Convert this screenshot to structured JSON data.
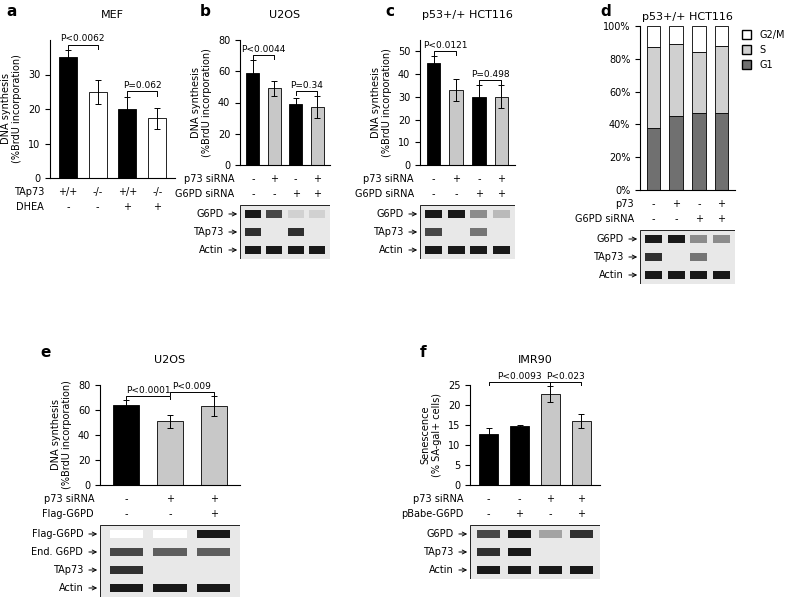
{
  "chart_data": [
    {
      "panel": "a",
      "type": "bar",
      "title": "MEF",
      "y_label": "DNA synthesis\n(%BrdU incorporation)",
      "categories": [
        null,
        null,
        null,
        null
      ],
      "values": [
        35,
        25,
        20,
        17.3
      ],
      "errors": [
        2,
        3.5,
        3.5,
        3
      ],
      "colors": [
        "#000000",
        "#ffffff",
        "#000000",
        "#ffffff"
      ],
      "ylim": [
        0,
        40
      ],
      "yticks": [
        0,
        10,
        20,
        30
      ],
      "tick_labels": "y",
      "annotations": [
        {
          "text": "P<0.0062",
          "bars": [
            0,
            1
          ]
        },
        {
          "text": "P=0.062",
          "bars": [
            2,
            3
          ]
        }
      ],
      "rows": [
        {
          "label": "TAp73",
          "values": [
            "+/+",
            "-/-",
            "+/+",
            "-/-"
          ]
        },
        {
          "label": "DHEA",
          "values": [
            "-",
            "-",
            "+",
            "+"
          ]
        }
      ]
    },
    {
      "panel": "b",
      "type": "bar",
      "title": "U2OS",
      "y_label": "DNA synthesis\n(%BrdU incorporation)",
      "categories": [
        null,
        null,
        null,
        null
      ],
      "values": [
        59,
        49,
        39,
        37
      ],
      "errors": [
        8,
        5,
        4,
        7
      ],
      "colors": [
        "#000000",
        "#c8c8c8",
        "#000000",
        "#c8c8c8"
      ],
      "ylim": [
        0,
        80
      ],
      "yticks": [
        0,
        20,
        40,
        60,
        80
      ],
      "tick_labels": "y",
      "annotations": [
        {
          "text": "P<0.0044",
          "bars": [
            0,
            1
          ]
        },
        {
          "text": "P=0.34",
          "bars": [
            2,
            3
          ]
        }
      ],
      "rows": [
        {
          "label": "p73 siRNA",
          "values": [
            "-",
            "+",
            "-",
            "+"
          ]
        },
        {
          "label": "G6PD siRNA",
          "values": [
            "-",
            "-",
            "+",
            "+"
          ]
        }
      ],
      "blots": [
        {
          "label": "G6PD",
          "intensity": [
            1,
            0.8,
            0.2,
            0.2
          ]
        },
        {
          "label": "TAp73",
          "intensity": [
            0.9,
            0.1,
            0.9,
            0.1
          ]
        },
        {
          "label": "Actin",
          "intensity": [
            1,
            1,
            1,
            1
          ]
        }
      ]
    },
    {
      "panel": "c",
      "type": "bar",
      "title": "p53+/+ HCT116",
      "y_label": "DNA synthesis\n(%BrdU incorporation)",
      "categories": [
        null,
        null,
        null,
        null
      ],
      "values": [
        45,
        33,
        30,
        30
      ],
      "errors": [
        3,
        5,
        5,
        5
      ],
      "colors": [
        "#000000",
        "#c8c8c8",
        "#000000",
        "#c8c8c8"
      ],
      "ylim": [
        0,
        55
      ],
      "yticks": [
        0,
        10,
        20,
        30,
        40,
        50
      ],
      "tick_labels": "y",
      "annotations": [
        {
          "text": "P<0.0121",
          "bars": [
            0,
            1
          ]
        },
        {
          "text": "P=0.498",
          "bars": [
            2,
            3
          ]
        }
      ],
      "rows": [
        {
          "label": "p73 siRNA",
          "values": [
            "-",
            "+",
            "-",
            "+"
          ]
        },
        {
          "label": "G6PD siRNA",
          "values": [
            "-",
            "-",
            "+",
            "+"
          ]
        }
      ],
      "blots": [
        {
          "label": "G6PD",
          "intensity": [
            1,
            1,
            0.5,
            0.3
          ]
        },
        {
          "label": "TAp73",
          "intensity": [
            0.8,
            0.1,
            0.6,
            0.1
          ]
        },
        {
          "label": "Actin",
          "intensity": [
            1,
            1,
            1,
            1
          ]
        }
      ]
    },
    {
      "panel": "d",
      "type": "bar",
      "stacked": true,
      "title": "p53+/+ HCT116",
      "categories": [
        null,
        null,
        null,
        null
      ],
      "series": [
        {
          "name": "G1",
          "color": "#707070",
          "values": [
            38,
            45,
            47,
            47
          ]
        },
        {
          "name": "S",
          "color": "#d0d0d0",
          "values": [
            49,
            44,
            37,
            41
          ]
        },
        {
          "name": "G2/M",
          "color": "#ffffff",
          "values": [
            13,
            11,
            16,
            12
          ]
        }
      ],
      "ylim": [
        0,
        100
      ],
      "yticks": [
        {
          "value": 0,
          "label": "0%"
        },
        {
          "value": 20,
          "label": "20%"
        },
        {
          "value": 40,
          "label": "40%"
        },
        {
          "value": 60,
          "label": "60%"
        },
        {
          "value": 80,
          "label": "80%"
        },
        {
          "value": 100,
          "label": "100%"
        }
      ],
      "tick_labels": "y",
      "legend": "upper left",
      "rows": [
        {
          "label": "p73",
          "values": [
            "-",
            "+",
            "-",
            "+"
          ]
        },
        {
          "label": "G6PD siRNA",
          "values": [
            "-",
            "-",
            "+",
            "+"
          ]
        }
      ],
      "blots": [
        {
          "label": "G6PD",
          "intensity": [
            1,
            1,
            0.5,
            0.5
          ]
        },
        {
          "label": "TAp73",
          "intensity": [
            0.9,
            0.1,
            0.6,
            0.1
          ]
        },
        {
          "label": "Actin",
          "intensity": [
            1,
            1,
            1,
            1
          ]
        }
      ]
    },
    {
      "panel": "e",
      "type": "bar",
      "title": "U2OS",
      "y_label": "DNA synthesis\n(%BrdU incorporation)",
      "categories": [
        null,
        null,
        null
      ],
      "values": [
        64,
        51,
        63
      ],
      "errors": [
        4,
        5,
        8
      ],
      "colors": [
        "#000000",
        "#c8c8c8",
        "#c8c8c8"
      ],
      "ylim": [
        0,
        80
      ],
      "yticks": [
        0,
        20,
        40,
        60,
        80
      ],
      "tick_labels": "y",
      "annotations": [
        {
          "text": "P<0.0001",
          "bars": [
            0,
            1
          ]
        },
        {
          "text": "P<0.009",
          "bars": [
            1,
            2
          ]
        }
      ],
      "rows": [
        {
          "label": "p73 siRNA",
          "values": [
            "-",
            "+",
            "+"
          ]
        },
        {
          "label": "Flag-G6PD",
          "values": [
            "-",
            "-",
            "+"
          ]
        }
      ],
      "blots": [
        {
          "label": "Flag-G6PD",
          "intensity": [
            0,
            0,
            1
          ]
        },
        {
          "label": "End. G6PD",
          "intensity": [
            0.8,
            0.7,
            0.7
          ]
        },
        {
          "label": "TAp73",
          "intensity": [
            0.9,
            0.1,
            0.1
          ]
        },
        {
          "label": "Actin",
          "intensity": [
            1,
            1,
            1
          ]
        }
      ]
    },
    {
      "panel": "f",
      "type": "bar",
      "title": "IMR90",
      "y_label": "Senescence\n(% SA-gal+ cells)",
      "categories": [
        null,
        null,
        null,
        null
      ],
      "values": [
        12.7,
        14.8,
        22.7,
        16
      ],
      "errors": [
        1.5,
        0.2,
        2,
        1.7
      ],
      "colors": [
        "#000000",
        "#000000",
        "#c8c8c8",
        "#c8c8c8"
      ],
      "ylim": [
        0,
        25
      ],
      "yticks": [
        0,
        5,
        10,
        15,
        20,
        25
      ],
      "tick_labels": "y",
      "annotations": [
        {
          "text": "P<0.0093",
          "bars": [
            0,
            2
          ]
        },
        {
          "text": "P<0.023",
          "bars": [
            2,
            3
          ]
        }
      ],
      "rows": [
        {
          "label": "p73 siRNA",
          "values": [
            "-",
            "-",
            "+",
            "+"
          ]
        },
        {
          "label": "pBabe-G6PD",
          "values": [
            "-",
            "+",
            "-",
            "+"
          ]
        }
      ],
      "blots": [
        {
          "label": "G6PD",
          "intensity": [
            0.8,
            1,
            0.4,
            0.9
          ]
        },
        {
          "label": "TAp73",
          "intensity": [
            0.9,
            1,
            0.1,
            0.1
          ]
        },
        {
          "label": "Actin",
          "intensity": [
            1,
            1,
            1,
            1
          ]
        }
      ]
    }
  ]
}
